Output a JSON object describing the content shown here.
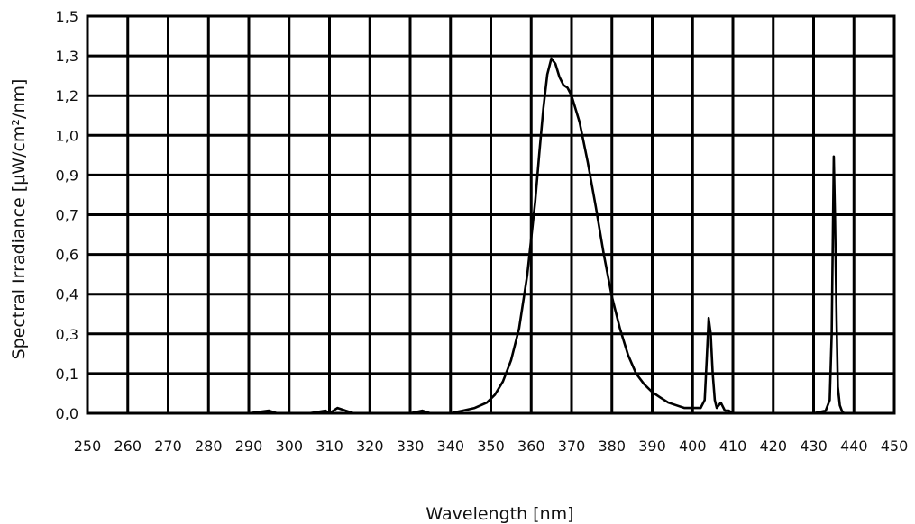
{
  "chart_data": {
    "type": "line",
    "title": "",
    "xlabel": "Wavelength  [nm]",
    "ylabel": "Spectral Irradiance  [μW/cm²/nm]",
    "xlim": [
      250,
      450
    ],
    "ylim": [
      0,
      1.5
    ],
    "x_ticks": [
      "250",
      "260",
      "270",
      "280",
      "290",
      "300",
      "310",
      "320",
      "330",
      "340",
      "350",
      "360",
      "370",
      "380",
      "390",
      "400",
      "410",
      "420",
      "430",
      "440",
      "450"
    ],
    "x_tick_values": [
      250,
      260,
      270,
      280,
      290,
      300,
      310,
      320,
      330,
      340,
      350,
      360,
      370,
      380,
      390,
      400,
      410,
      420,
      430,
      440,
      450
    ],
    "y_ticks": [
      "0,0",
      "0,1",
      "0,3",
      "0,4",
      "0,6",
      "0,7",
      "0,9",
      "1,0",
      "1,2",
      "1,3",
      "1,5"
    ],
    "y_tick_values": [
      0,
      0.15,
      0.3,
      0.45,
      0.6,
      0.75,
      0.9,
      1.05,
      1.2,
      1.35,
      1.5
    ],
    "grid": true,
    "series": [
      {
        "x": [
          250,
          290,
          295,
          297,
          300,
          305,
          309,
          310,
          312,
          314,
          316,
          320,
          330,
          333,
          335,
          340,
          343,
          346,
          349,
          351,
          353,
          355,
          357,
          359,
          361,
          362,
          363,
          364,
          365,
          366,
          367,
          368,
          369,
          370,
          372,
          374,
          376,
          378,
          380,
          382,
          384,
          386,
          388,
          390,
          392,
          394,
          396,
          398,
          400,
          401,
          402,
          403,
          403.5,
          404,
          404.5,
          405,
          405.5,
          406,
          407,
          408,
          409,
          410,
          420,
          430,
          433,
          434,
          434.5,
          435,
          435.3,
          435.7,
          436,
          436.5,
          437,
          437.5,
          438,
          440,
          450
        ],
        "values": [
          0.0,
          0.0,
          0.01,
          0.0,
          0.0,
          0.0,
          0.01,
          0.0,
          0.02,
          0.01,
          0.0,
          0.0,
          0.0,
          0.01,
          0.0,
          0.0,
          0.01,
          0.02,
          0.04,
          0.07,
          0.12,
          0.2,
          0.32,
          0.52,
          0.8,
          0.98,
          1.15,
          1.28,
          1.34,
          1.32,
          1.27,
          1.24,
          1.23,
          1.2,
          1.1,
          0.95,
          0.78,
          0.6,
          0.44,
          0.32,
          0.22,
          0.15,
          0.11,
          0.08,
          0.06,
          0.04,
          0.03,
          0.02,
          0.02,
          0.02,
          0.02,
          0.05,
          0.2,
          0.36,
          0.3,
          0.15,
          0.05,
          0.02,
          0.04,
          0.01,
          0.01,
          0.0,
          0.0,
          0.0,
          0.01,
          0.05,
          0.3,
          0.97,
          0.75,
          0.35,
          0.1,
          0.03,
          0.01,
          0.0,
          0.0,
          0.0,
          0.0
        ]
      }
    ]
  }
}
